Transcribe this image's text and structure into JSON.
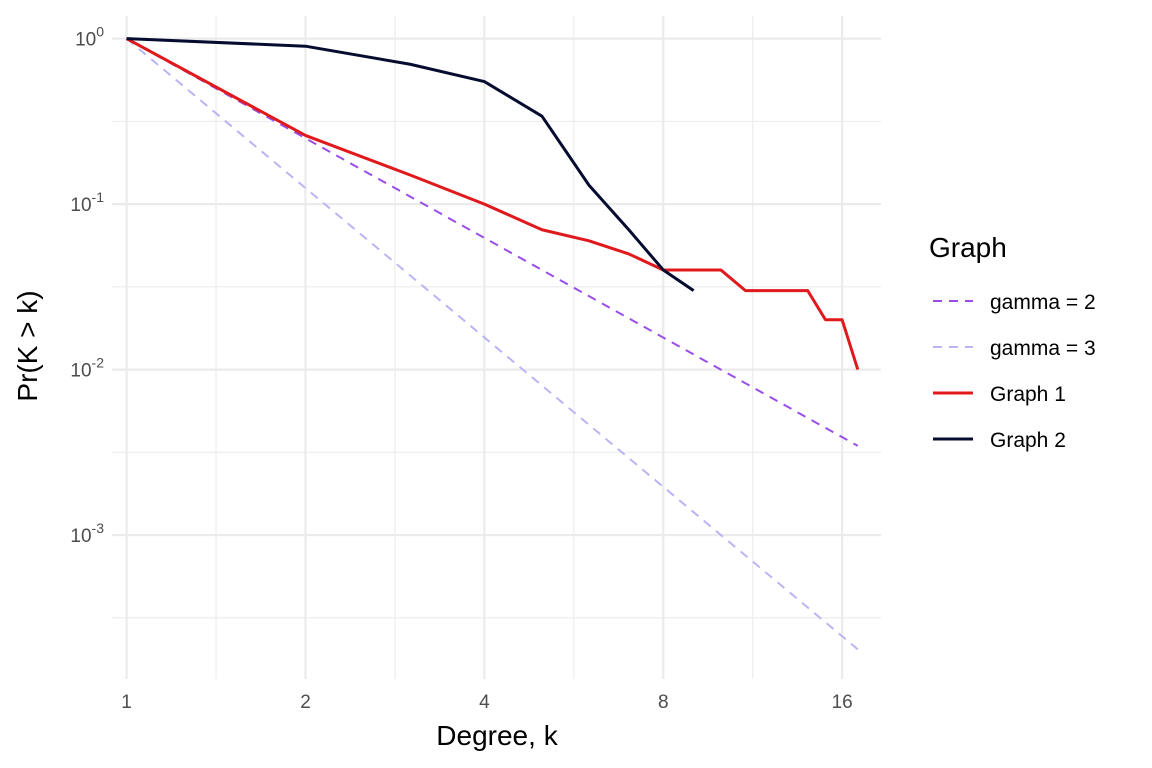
{
  "chart_data": {
    "type": "line",
    "title": "",
    "xlabel": "Degree, k",
    "ylabel": "Pr(K > k)",
    "x_scale": "log2",
    "y_scale": "log10",
    "xlim": [
      0.945,
      18.6
    ],
    "ylim": [
      0.000135,
      1.37
    ],
    "x_ticks": [
      1,
      2,
      4,
      8,
      16
    ],
    "x_tick_labels": [
      "1",
      "2",
      "4",
      "8",
      "16"
    ],
    "y_ticks": [
      1,
      0.1,
      0.01,
      0.001
    ],
    "y_tick_labels": [
      {
        "base": "10",
        "exp": "0"
      },
      {
        "base": "10",
        "exp": "-1"
      },
      {
        "base": "10",
        "exp": "-2"
      },
      {
        "base": "10",
        "exp": "-3"
      }
    ],
    "grid": true,
    "legend": {
      "title": "Graph",
      "position": "right",
      "entries": [
        "gamma = 2",
        "gamma = 3",
        "Graph 1",
        "Graph 2"
      ]
    },
    "series": [
      {
        "name": "gamma = 2",
        "color": "#9b4de8",
        "dashed": true,
        "width": 2,
        "x": [
          1,
          17
        ],
        "y": [
          1,
          0.00346
        ]
      },
      {
        "name": "gamma = 3",
        "color": "#b9b5f5",
        "dashed": true,
        "width": 2,
        "x": [
          1,
          17
        ],
        "y": [
          1,
          0.000204
        ]
      },
      {
        "name": "Graph 1",
        "color": "#e0191c",
        "dashed": false,
        "width": 3,
        "x": [
          1,
          2,
          3,
          4,
          5,
          6,
          7,
          8,
          9,
          10,
          11,
          12,
          13,
          14,
          15,
          16,
          17
        ],
        "y": [
          1,
          0.26,
          0.15,
          0.1,
          0.07,
          0.06,
          0.05,
          0.04,
          0.04,
          0.04,
          0.03,
          0.03,
          0.03,
          0.03,
          0.02,
          0.02,
          0.01
        ]
      },
      {
        "name": "Graph 2",
        "color": "#060c2f",
        "dashed": false,
        "width": 3,
        "x": [
          1,
          2,
          3,
          4,
          5,
          6,
          7,
          8,
          9
        ],
        "y": [
          1,
          0.9,
          0.7,
          0.55,
          0.34,
          0.13,
          0.07,
          0.04,
          0.03
        ]
      }
    ]
  }
}
